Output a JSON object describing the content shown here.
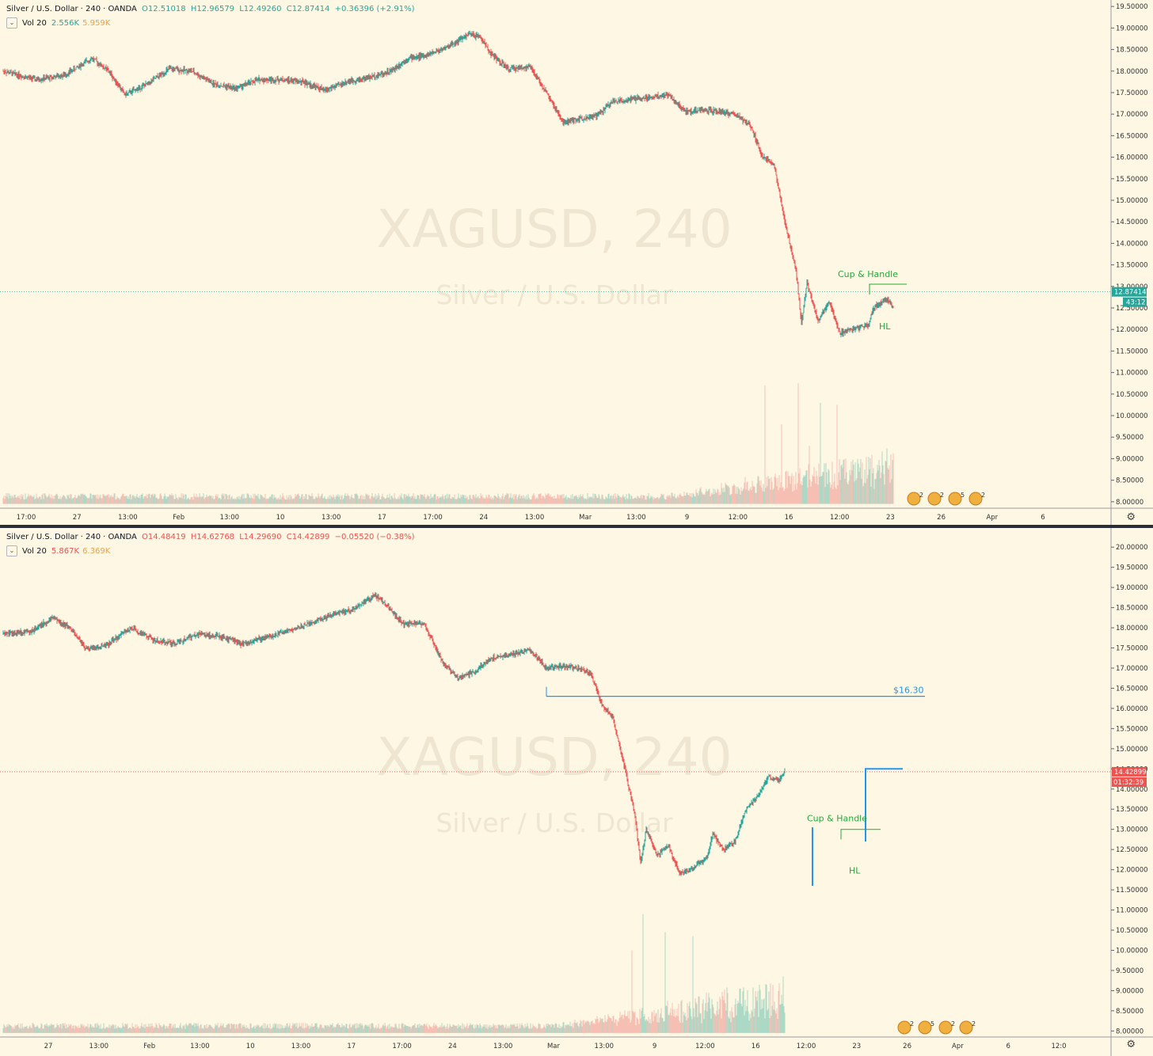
{
  "theme": {
    "background": "#fdf7e3",
    "up_color": "#26a69a",
    "down_color": "#ef5350",
    "up_volume": "#89cbb9",
    "down_volume": "#f2a7a0",
    "drawing_green": "#22ab3a",
    "drawing_blue": "#2196f3",
    "watermark_color": "#efe6d2"
  },
  "panels": [
    {
      "id": "top",
      "legend": {
        "symbol": "Silver / U.S. Dollar",
        "interval": "240",
        "broker": "OANDA",
        "open": "O12.51018",
        "high": "H12.96579",
        "low": "L12.49260",
        "close": "C12.87414",
        "change": "+0.36396 (+2.91%)",
        "change_color": "#26a69a",
        "vol_label": "Vol 20",
        "vol_value": "2.556K",
        "vol_value_color": "#26a69a",
        "vol_ma": "5.959K"
      },
      "watermark": {
        "title": "XAGUSD, 240",
        "subtitle": "Silver / U.S. Dollar"
      },
      "last_price": {
        "label": "12.87414",
        "countdown": "43:12",
        "color": "#26a69a"
      },
      "annotations": {
        "cup_handle": "Cup  &  Handle",
        "hl": "HL"
      },
      "axis": {
        "y_ticks": [
          "19.50000",
          "19.00000",
          "18.50000",
          "18.00000",
          "17.50000",
          "17.00000",
          "16.50000",
          "16.00000",
          "15.50000",
          "15.00000",
          "14.50000",
          "14.00000",
          "13.50000",
          "13.00000",
          "12.50000",
          "12.00000",
          "11.50000",
          "11.00000",
          "10.50000",
          "10.00000",
          "9.50000",
          "9.00000",
          "8.50000",
          "8.00000"
        ],
        "x_ticks": [
          "17:00",
          "27",
          "13:00",
          "Feb",
          "13:00",
          "10",
          "13:00",
          "17",
          "17:00",
          "24",
          "13:00",
          "Mar",
          "13:00",
          "9",
          "12:00",
          "16",
          "12:00",
          "23",
          "26",
          "Apr",
          "6"
        ],
        "event_badges": [
          "2",
          "2",
          "5",
          "2"
        ]
      },
      "chart_data": {
        "type": "candlestick",
        "ylim": [
          7.85,
          19.65
        ],
        "price_waypoints": [
          [
            0,
            18.0
          ],
          [
            6,
            17.8
          ],
          [
            11,
            17.9
          ],
          [
            16,
            18.3
          ],
          [
            19,
            18.0
          ],
          [
            22,
            17.45
          ],
          [
            26,
            17.7
          ],
          [
            30,
            18.05
          ],
          [
            34,
            18.0
          ],
          [
            38,
            17.7
          ],
          [
            42,
            17.6
          ],
          [
            46,
            17.8
          ],
          [
            50,
            17.8
          ],
          [
            54,
            17.75
          ],
          [
            58,
            17.55
          ],
          [
            62,
            17.75
          ],
          [
            66,
            17.85
          ],
          [
            70,
            18.0
          ],
          [
            73,
            18.3
          ],
          [
            76,
            18.35
          ],
          [
            80,
            18.55
          ],
          [
            84,
            18.85
          ],
          [
            86,
            18.8
          ],
          [
            88,
            18.4
          ],
          [
            91,
            18.05
          ],
          [
            95,
            18.1
          ],
          [
            98,
            17.5
          ],
          [
            101,
            16.8
          ],
          [
            104,
            16.9
          ],
          [
            107,
            16.95
          ],
          [
            110,
            17.3
          ],
          [
            114,
            17.35
          ],
          [
            117,
            17.4
          ],
          [
            120,
            17.45
          ],
          [
            123,
            17.05
          ],
          [
            126,
            17.1
          ],
          [
            129,
            17.05
          ],
          [
            132,
            17.0
          ],
          [
            135,
            16.7
          ],
          [
            137,
            16.0
          ],
          [
            139,
            15.85
          ],
          [
            141,
            14.5
          ],
          [
            143,
            13.4
          ],
          [
            144,
            12.15
          ],
          [
            145,
            13.1
          ],
          [
            147,
            12.2
          ],
          [
            149,
            12.65
          ],
          [
            151,
            11.9
          ],
          [
            153,
            12.0
          ],
          [
            156,
            12.1
          ],
          [
            157,
            12.5
          ],
          [
            159,
            12.7
          ],
          [
            161,
            12.5
          ],
          [
            162,
            12.9
          ]
        ],
        "volume_peaks": [
          [
            137,
            10.7
          ],
          [
            140,
            9.8
          ],
          [
            143,
            10.75
          ],
          [
            145,
            9.3
          ],
          [
            147,
            10.3
          ],
          [
            148,
            8.9
          ],
          [
            150,
            10.25
          ]
        ]
      }
    },
    {
      "id": "bottom",
      "legend": {
        "symbol": "Silver / U.S. Dollar",
        "interval": "240",
        "broker": "OANDA",
        "open": "O14.48419",
        "high": "H14.62768",
        "low": "L14.29690",
        "close": "C14.42899",
        "change": "−0.05520 (−0.38%)",
        "change_color": "#ef5350",
        "vol_label": "Vol 20",
        "vol_value": "5.867K",
        "vol_value_color": "#ef5350",
        "vol_ma": "6.369K"
      },
      "watermark": {
        "title": "XAGUSD, 240",
        "subtitle": "Silver / U.S. Dollar"
      },
      "last_price": {
        "label": "14.42899",
        "countdown": "01:32:39",
        "color": "#ef5350"
      },
      "annotations": {
        "cup_handle": "Cup & Handle",
        "hl": "HL",
        "level": "$16.30"
      },
      "axis": {
        "y_ticks": [
          "20.00000",
          "19.50000",
          "19.00000",
          "18.50000",
          "18.00000",
          "17.50000",
          "17.00000",
          "16.50000",
          "16.00000",
          "15.50000",
          "15.00000",
          "14.50000",
          "14.00000",
          "13.50000",
          "13.00000",
          "12.50000",
          "12.00000",
          "11.50000",
          "11.00000",
          "10.50000",
          "10.00000",
          "9.50000",
          "9.00000",
          "8.50000",
          "8.00000"
        ],
        "x_ticks": [
          "27",
          "13:00",
          "Feb",
          "13:00",
          "10",
          "13:00",
          "17",
          "17:00",
          "24",
          "13:00",
          "Mar",
          "13:00",
          "9",
          "12:00",
          "16",
          "12:00",
          "23",
          "26",
          "Apr",
          "6",
          "12:0"
        ],
        "event_badges": [
          "2",
          "5",
          "2",
          "2"
        ]
      },
      "chart_data": {
        "type": "candlestick",
        "ylim": [
          7.85,
          20.2
        ],
        "price_waypoints": [
          [
            0,
            17.85
          ],
          [
            5,
            17.9
          ],
          [
            9,
            18.25
          ],
          [
            12,
            18.0
          ],
          [
            15,
            17.45
          ],
          [
            19,
            17.6
          ],
          [
            23,
            18.0
          ],
          [
            27,
            17.7
          ],
          [
            31,
            17.6
          ],
          [
            35,
            17.85
          ],
          [
            39,
            17.8
          ],
          [
            43,
            17.6
          ],
          [
            47,
            17.75
          ],
          [
            51,
            17.9
          ],
          [
            55,
            18.1
          ],
          [
            59,
            18.3
          ],
          [
            63,
            18.45
          ],
          [
            67,
            18.8
          ],
          [
            69,
            18.6
          ],
          [
            72,
            18.1
          ],
          [
            76,
            18.1
          ],
          [
            79,
            17.2
          ],
          [
            82,
            16.75
          ],
          [
            85,
            16.9
          ],
          [
            88,
            17.25
          ],
          [
            92,
            17.35
          ],
          [
            95,
            17.45
          ],
          [
            98,
            17.0
          ],
          [
            101,
            17.05
          ],
          [
            104,
            17.0
          ],
          [
            106,
            16.85
          ],
          [
            108,
            16.1
          ],
          [
            110,
            15.75
          ],
          [
            112,
            14.6
          ],
          [
            114,
            13.3
          ],
          [
            115,
            12.15
          ],
          [
            116,
            13.0
          ],
          [
            118,
            12.35
          ],
          [
            120,
            12.6
          ],
          [
            122,
            11.9
          ],
          [
            124,
            12.0
          ],
          [
            127,
            12.3
          ],
          [
            128,
            12.9
          ],
          [
            130,
            12.5
          ],
          [
            132,
            12.7
          ],
          [
            134,
            13.5
          ],
          [
            136,
            13.8
          ],
          [
            138,
            14.3
          ],
          [
            140,
            14.2
          ],
          [
            141,
            14.45
          ]
        ],
        "volume_peaks": [
          [
            115,
            10.9
          ],
          [
            119,
            10.45
          ],
          [
            124,
            10.35
          ],
          [
            113,
            10.0
          ],
          [
            142,
            9.85
          ]
        ]
      }
    }
  ]
}
